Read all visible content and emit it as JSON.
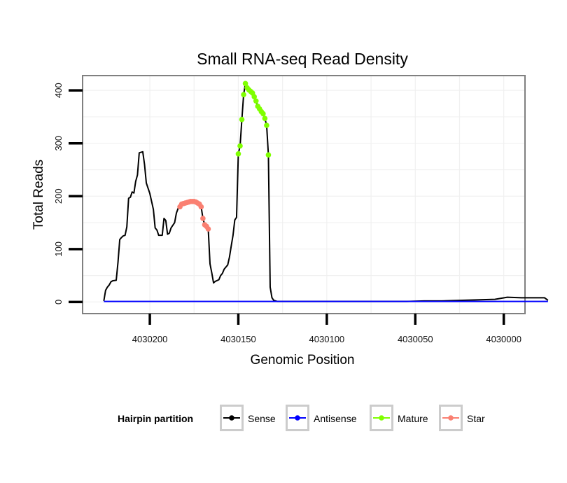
{
  "chart_data": {
    "type": "line",
    "title": "Small RNA-seq Read Density",
    "xlabel": "Genomic Position",
    "ylabel": "Total Reads",
    "x_reversed": true,
    "xlim": [
      4030238,
      4029988
    ],
    "ylim": [
      -22,
      428
    ],
    "xticks": [
      4030200,
      4030150,
      4030100,
      4030050,
      4030000
    ],
    "xtick_labels": [
      "4030200",
      "4030150",
      "4030100",
      "4030050",
      "4030000"
    ],
    "yticks": [
      0,
      100,
      200,
      300,
      400
    ],
    "ytick_labels": [
      "0",
      "100",
      "200",
      "300",
      "400"
    ],
    "grid": true,
    "legend": {
      "title": "Hairpin partition",
      "placement": "bottom",
      "entries": [
        {
          "label": "Sense",
          "color": "#000000"
        },
        {
          "label": "Antisense",
          "color": "#0000ff"
        },
        {
          "label": "Mature",
          "color": "#7fff00"
        },
        {
          "label": "Star",
          "color": "#fa8072"
        }
      ]
    },
    "series": [
      {
        "name": "Sense",
        "color": "#000000",
        "points": [
          [
            4030226,
            2
          ],
          [
            4030225,
            22
          ],
          [
            4030224,
            28
          ],
          [
            4030223,
            32
          ],
          [
            4030222,
            38
          ],
          [
            4030221,
            40
          ],
          [
            4030219,
            41
          ],
          [
            4030218,
            75
          ],
          [
            4030217,
            118
          ],
          [
            4030216,
            122
          ],
          [
            4030215,
            125
          ],
          [
            4030214,
            126
          ],
          [
            4030213,
            142
          ],
          [
            4030212,
            196
          ],
          [
            4030211,
            198
          ],
          [
            4030210,
            208
          ],
          [
            4030209,
            206
          ],
          [
            4030208,
            228
          ],
          [
            4030207,
            240
          ],
          [
            4030206,
            282
          ],
          [
            4030204,
            284
          ],
          [
            4030203,
            260
          ],
          [
            4030202,
            225
          ],
          [
            4030201,
            215
          ],
          [
            4030200,
            205
          ],
          [
            4030199,
            190
          ],
          [
            4030198,
            175
          ],
          [
            4030197,
            140
          ],
          [
            4030196,
            136
          ],
          [
            4030195,
            126
          ],
          [
            4030193,
            126
          ],
          [
            4030192,
            158
          ],
          [
            4030191,
            154
          ],
          [
            4030190,
            128
          ],
          [
            4030189,
            130
          ],
          [
            4030188,
            140
          ],
          [
            4030187,
            145
          ],
          [
            4030186,
            150
          ],
          [
            4030185,
            168
          ],
          [
            4030184,
            177
          ],
          [
            4030183,
            185
          ],
          [
            4030182,
            186
          ],
          [
            4030180,
            188
          ],
          [
            4030178,
            190
          ],
          [
            4030176,
            190
          ],
          [
            4030174,
            190
          ],
          [
            4030172,
            187
          ],
          [
            4030171,
            180
          ],
          [
            4030170,
            158
          ],
          [
            4030169,
            146
          ],
          [
            4030168,
            143
          ],
          [
            4030167,
            138
          ],
          [
            4030166,
            72
          ],
          [
            4030165,
            55
          ],
          [
            4030164,
            36
          ],
          [
            4030163,
            39
          ],
          [
            4030161,
            42
          ],
          [
            4030160,
            50
          ],
          [
            4030159,
            54
          ],
          [
            4030158,
            62
          ],
          [
            4030157,
            66
          ],
          [
            4030156,
            70
          ],
          [
            4030155,
            85
          ],
          [
            4030154,
            106
          ],
          [
            4030153,
            126
          ],
          [
            4030152,
            155
          ],
          [
            4030151,
            160
          ],
          [
            4030150,
            280
          ],
          [
            4030149,
            295
          ],
          [
            4030148,
            345
          ],
          [
            4030147,
            392
          ],
          [
            4030146,
            413
          ],
          [
            4030145,
            405
          ],
          [
            4030144,
            401
          ],
          [
            4030143,
            398
          ],
          [
            4030142,
            395
          ],
          [
            4030141,
            388
          ],
          [
            4030140,
            380
          ],
          [
            4030139,
            370
          ],
          [
            4030138,
            365
          ],
          [
            4030137,
            360
          ],
          [
            4030136,
            356
          ],
          [
            4030135,
            347
          ],
          [
            4030134,
            334
          ],
          [
            4030133,
            278
          ],
          [
            4030132,
            28
          ],
          [
            4030131,
            8
          ],
          [
            4030130,
            3
          ],
          [
            4030128,
            1
          ],
          [
            4030100,
            1
          ],
          [
            4030075,
            1
          ],
          [
            4030055,
            1
          ],
          [
            4030045,
            2
          ],
          [
            4030035,
            2
          ],
          [
            4030025,
            3
          ],
          [
            4030015,
            4
          ],
          [
            4030005,
            5
          ],
          [
            4029998,
            9
          ],
          [
            4029990,
            8
          ],
          [
            4029983,
            8
          ],
          [
            4029977,
            8
          ],
          [
            4029975,
            3
          ]
        ]
      },
      {
        "name": "Antisense",
        "color": "#0000ff",
        "points": [
          [
            4030226,
            1
          ],
          [
            4029975,
            1
          ]
        ]
      },
      {
        "name": "Mature",
        "color": "#7fff00",
        "points": [
          [
            4030150,
            280
          ],
          [
            4030149,
            295
          ],
          [
            4030148,
            345
          ],
          [
            4030147,
            392
          ],
          [
            4030146,
            413
          ],
          [
            4030145,
            405
          ],
          [
            4030144,
            401
          ],
          [
            4030143,
            398
          ],
          [
            4030142,
            395
          ],
          [
            4030141,
            388
          ],
          [
            4030140,
            380
          ],
          [
            4030139,
            370
          ],
          [
            4030138,
            365
          ],
          [
            4030137,
            360
          ],
          [
            4030136,
            356
          ],
          [
            4030135,
            347
          ],
          [
            4030134,
            334
          ],
          [
            4030133,
            278
          ]
        ]
      },
      {
        "name": "Star",
        "color": "#fa8072",
        "points": [
          [
            4030183,
            180
          ],
          [
            4030182,
            185
          ],
          [
            4030181,
            186
          ],
          [
            4030180,
            187
          ],
          [
            4030179,
            188
          ],
          [
            4030178,
            189
          ],
          [
            4030177,
            190
          ],
          [
            4030176,
            190
          ],
          [
            4030175,
            190
          ],
          [
            4030174,
            189
          ],
          [
            4030173,
            187
          ],
          [
            4030172,
            185
          ],
          [
            4030171,
            180
          ],
          [
            4030170,
            158
          ],
          [
            4030169,
            146
          ],
          [
            4030168,
            143
          ],
          [
            4030167,
            138
          ]
        ]
      }
    ]
  }
}
